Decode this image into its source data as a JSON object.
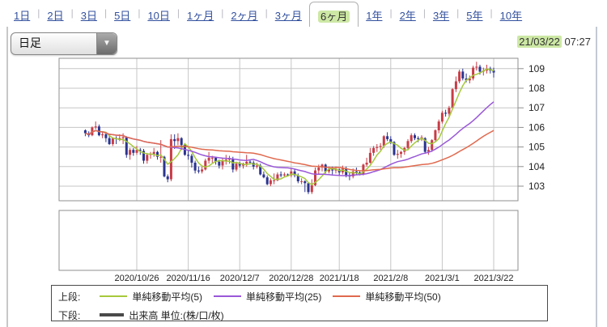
{
  "tabs": {
    "items": [
      {
        "label": "1日",
        "name": "tab-1d",
        "active": false
      },
      {
        "label": "2日",
        "name": "tab-2d",
        "active": false
      },
      {
        "label": "3日",
        "name": "tab-3d",
        "active": false
      },
      {
        "label": "5日",
        "name": "tab-5d",
        "active": false
      },
      {
        "label": "10日",
        "name": "tab-10d",
        "active": false
      },
      {
        "label": "1ヶ月",
        "name": "tab-1mo",
        "active": false
      },
      {
        "label": "2ヶ月",
        "name": "tab-2mo",
        "active": false
      },
      {
        "label": "3ヶ月",
        "name": "tab-3mo",
        "active": false
      },
      {
        "label": "6ヶ月",
        "name": "tab-6mo",
        "active": true
      },
      {
        "label": "1年",
        "name": "tab-1y",
        "active": false
      },
      {
        "label": "2年",
        "name": "tab-2y",
        "active": false
      },
      {
        "label": "3年",
        "name": "tab-3y",
        "active": false
      },
      {
        "label": "5年",
        "name": "tab-5y",
        "active": false
      },
      {
        "label": "10年",
        "name": "tab-10y",
        "active": false
      }
    ]
  },
  "toolbar": {
    "interval_select": {
      "value": "日足"
    },
    "datetime": {
      "date": "21/03/22",
      "time": "07:27"
    }
  },
  "legend": {
    "upper_label": "上段:",
    "lower_label": "下段:",
    "volume_label": "出来高 単位:(株/口/枚)"
  },
  "chart_data": {
    "type": "candlestick",
    "ylim": [
      102.3,
      109.5
    ],
    "y_ticks": [
      103,
      104,
      105,
      106,
      107,
      108,
      109
    ],
    "x_ticks": [
      {
        "label": "2020/10/26",
        "i": 15
      },
      {
        "label": "2020/11/16",
        "i": 30
      },
      {
        "label": "2020/12/7",
        "i": 45
      },
      {
        "label": "2020/12/28",
        "i": 60
      },
      {
        "label": "2021/1/18",
        "i": 74
      },
      {
        "label": "2021/2/8",
        "i": 89
      },
      {
        "label": "2021/3/1",
        "i": 104
      },
      {
        "label": "2021/3/22",
        "i": 119
      }
    ],
    "series": [
      {
        "name": "単純移動平均(5)",
        "period": 5,
        "color": "#a6c93c"
      },
      {
        "name": "単純移動平均(25)",
        "period": 25,
        "color": "#9957d8"
      },
      {
        "name": "単純移動平均(50)",
        "period": 50,
        "color": "#e0694e"
      }
    ],
    "colors": {
      "up": "#c83c46",
      "down": "#2a3490",
      "grid": "#c6c6c6",
      "border": "#8f8f8f"
    },
    "lower_panel": {
      "name": "出来高",
      "values": []
    },
    "candles": [
      [
        "2020/10/05",
        105.85,
        105.9,
        105.55,
        105.7
      ],
      [
        "2020/10/06",
        105.7,
        105.8,
        105.5,
        105.6
      ],
      [
        "2020/10/07",
        105.6,
        106.05,
        105.55,
        106.0
      ],
      [
        "2020/10/08",
        106.0,
        106.3,
        105.9,
        106.05
      ],
      [
        "2020/10/09",
        106.05,
        106.15,
        105.55,
        105.6
      ],
      [
        "2020/10/12",
        105.6,
        105.8,
        105.45,
        105.65
      ],
      [
        "2020/10/13",
        105.65,
        105.75,
        105.25,
        105.45
      ],
      [
        "2020/10/14",
        105.45,
        105.6,
        105.1,
        105.15
      ],
      [
        "2020/10/15",
        105.15,
        105.5,
        105.05,
        105.45
      ],
      [
        "2020/10/16",
        105.45,
        105.55,
        105.15,
        105.4
      ],
      [
        "2020/10/19",
        105.4,
        105.65,
        105.3,
        105.45
      ],
      [
        "2020/10/20",
        105.45,
        105.7,
        105.15,
        105.5
      ],
      [
        "2020/10/21",
        105.5,
        105.55,
        104.45,
        104.6
      ],
      [
        "2020/10/22",
        104.6,
        104.95,
        104.35,
        104.85
      ],
      [
        "2020/10/23",
        104.85,
        104.95,
        104.55,
        104.7
      ],
      [
        "2020/10/26",
        104.7,
        105.05,
        104.6,
        104.85
      ],
      [
        "2020/10/27",
        104.85,
        104.95,
        104.6,
        104.8
      ],
      [
        "2020/10/28",
        104.8,
        104.9,
        104.15,
        104.3
      ],
      [
        "2020/10/29",
        104.3,
        104.7,
        104.15,
        104.6
      ],
      [
        "2020/10/30",
        104.6,
        104.75,
        104.4,
        104.65
      ],
      [
        "2020/11/02",
        104.65,
        104.95,
        104.5,
        104.75
      ],
      [
        "2020/11/03",
        104.75,
        104.8,
        104.35,
        104.5
      ],
      [
        "2020/11/04",
        104.5,
        105.35,
        104.2,
        104.5
      ],
      [
        "2020/11/05",
        104.5,
        104.55,
        103.45,
        103.5
      ],
      [
        "2020/11/06",
        103.5,
        103.6,
        103.2,
        103.35
      ],
      [
        "2020/11/09",
        103.35,
        105.65,
        103.25,
        105.4
      ],
      [
        "2020/11/10",
        105.4,
        105.65,
        104.9,
        105.3
      ],
      [
        "2020/11/11",
        105.3,
        105.7,
        105.1,
        105.45
      ],
      [
        "2020/11/12",
        105.45,
        105.5,
        104.85,
        105.1
      ],
      [
        "2020/11/13",
        105.1,
        105.2,
        104.55,
        104.6
      ],
      [
        "2020/11/16",
        104.6,
        104.8,
        104.35,
        104.55
      ],
      [
        "2020/11/17",
        104.55,
        104.65,
        103.95,
        104.2
      ],
      [
        "2020/11/18",
        104.2,
        104.3,
        103.65,
        103.8
      ],
      [
        "2020/11/19",
        103.8,
        104.0,
        103.65,
        103.75
      ],
      [
        "2020/11/20",
        103.75,
        104.0,
        103.65,
        103.85
      ],
      [
        "2020/11/23",
        103.85,
        104.4,
        103.8,
        104.3
      ],
      [
        "2020/11/24",
        104.3,
        104.75,
        104.15,
        104.45
      ],
      [
        "2020/11/25",
        104.45,
        104.55,
        104.2,
        104.45
      ],
      [
        "2020/11/26",
        104.45,
        104.5,
        104.1,
        104.25
      ],
      [
        "2020/11/27",
        104.25,
        104.35,
        103.9,
        104.05
      ],
      [
        "2020/11/30",
        104.05,
        104.45,
        103.85,
        104.3
      ],
      [
        "2020/12/01",
        104.3,
        104.6,
        104.1,
        104.35
      ],
      [
        "2020/12/02",
        104.35,
        104.55,
        104.15,
        104.4
      ],
      [
        "2020/12/03",
        104.4,
        104.5,
        103.7,
        103.85
      ],
      [
        "2020/12/04",
        103.85,
        104.25,
        103.75,
        104.15
      ],
      [
        "2020/12/07",
        104.15,
        104.25,
        103.95,
        104.05
      ],
      [
        "2020/12/08",
        104.05,
        104.2,
        103.9,
        104.15
      ],
      [
        "2020/12/09",
        104.15,
        104.6,
        104.0,
        104.25
      ],
      [
        "2020/12/10",
        104.25,
        104.35,
        104.1,
        104.2
      ],
      [
        "2020/12/11",
        104.2,
        104.3,
        103.85,
        104.0
      ],
      [
        "2020/12/14",
        104.0,
        104.2,
        103.9,
        104.05
      ],
      [
        "2020/12/15",
        104.05,
        104.15,
        103.55,
        103.6
      ],
      [
        "2020/12/16",
        103.6,
        103.75,
        103.4,
        103.45
      ],
      [
        "2020/12/17",
        103.45,
        103.55,
        103.05,
        103.1
      ],
      [
        "2020/12/18",
        103.1,
        103.4,
        103.0,
        103.3
      ],
      [
        "2020/12/21",
        103.3,
        103.65,
        103.1,
        103.3
      ],
      [
        "2020/12/22",
        103.3,
        103.7,
        103.25,
        103.6
      ],
      [
        "2020/12/23",
        103.6,
        103.75,
        103.45,
        103.55
      ],
      [
        "2020/12/24",
        103.55,
        103.7,
        103.45,
        103.6
      ],
      [
        "2020/12/25",
        103.6,
        103.65,
        103.5,
        103.55
      ],
      [
        "2020/12/28",
        103.55,
        103.9,
        103.45,
        103.75
      ],
      [
        "2020/12/29",
        103.75,
        103.85,
        103.45,
        103.55
      ],
      [
        "2020/12/30",
        103.55,
        103.65,
        103.15,
        103.25
      ],
      [
        "2020/12/31",
        103.25,
        103.4,
        103.1,
        103.25
      ],
      [
        "2021/01/04",
        103.25,
        103.3,
        102.7,
        103.15
      ],
      [
        "2021/01/05",
        103.15,
        103.2,
        102.6,
        102.7
      ],
      [
        "2021/01/06",
        102.7,
        103.35,
        102.6,
        103.05
      ],
      [
        "2021/01/07",
        103.05,
        103.95,
        103.0,
        103.8
      ],
      [
        "2021/01/08",
        103.8,
        104.1,
        103.6,
        103.95
      ],
      [
        "2021/01/11",
        103.95,
        104.15,
        103.75,
        104.1
      ],
      [
        "2021/01/12",
        104.1,
        104.15,
        103.65,
        103.75
      ],
      [
        "2021/01/13",
        103.75,
        104.0,
        103.65,
        103.85
      ],
      [
        "2021/01/14",
        103.85,
        104.0,
        103.6,
        103.8
      ],
      [
        "2021/01/15",
        103.8,
        104.0,
        103.65,
        103.85
      ],
      [
        "2021/01/18",
        103.85,
        103.9,
        103.55,
        103.7
      ],
      [
        "2021/01/19",
        103.7,
        104.05,
        103.6,
        103.9
      ],
      [
        "2021/01/20",
        103.9,
        104.0,
        103.45,
        103.55
      ],
      [
        "2021/01/21",
        103.55,
        103.7,
        103.3,
        103.5
      ],
      [
        "2021/01/22",
        103.5,
        103.9,
        103.4,
        103.75
      ],
      [
        "2021/01/25",
        103.75,
        103.95,
        103.6,
        103.7
      ],
      [
        "2021/01/26",
        103.7,
        103.8,
        103.55,
        103.6
      ],
      [
        "2021/01/27",
        103.6,
        104.15,
        103.55,
        104.1
      ],
      [
        "2021/01/28",
        104.1,
        104.45,
        104.0,
        104.2
      ],
      [
        "2021/01/29",
        104.2,
        104.95,
        104.15,
        104.7
      ],
      [
        "2021/02/01",
        104.7,
        105.05,
        104.55,
        104.95
      ],
      [
        "2021/02/02",
        104.95,
        105.15,
        104.75,
        105.0
      ],
      [
        "2021/02/03",
        105.0,
        105.2,
        104.85,
        105.05
      ],
      [
        "2021/02/04",
        105.05,
        105.6,
        104.95,
        105.55
      ],
      [
        "2021/02/05",
        105.55,
        105.75,
        105.3,
        105.4
      ],
      [
        "2021/02/08",
        105.4,
        105.55,
        105.15,
        105.25
      ],
      [
        "2021/02/09",
        105.25,
        105.3,
        104.55,
        104.6
      ],
      [
        "2021/02/10",
        104.6,
        104.85,
        104.4,
        104.65
      ],
      [
        "2021/02/11",
        104.65,
        104.8,
        104.45,
        104.75
      ],
      [
        "2021/02/12",
        104.75,
        105.0,
        104.6,
        104.95
      ],
      [
        "2021/02/15",
        104.95,
        105.4,
        104.85,
        105.3
      ],
      [
        "2021/02/16",
        105.3,
        105.7,
        105.2,
        105.6
      ],
      [
        "2021/02/17",
        105.6,
        105.7,
        105.35,
        105.45
      ],
      [
        "2021/02/18",
        105.45,
        105.55,
        105.25,
        105.4
      ],
      [
        "2021/02/19",
        105.4,
        105.6,
        105.3,
        105.5
      ],
      [
        "2021/02/22",
        105.45,
        105.5,
        104.65,
        104.75
      ],
      [
        "2021/02/23",
        104.75,
        105.0,
        104.6,
        104.85
      ],
      [
        "2021/02/24",
        104.85,
        105.4,
        104.75,
        105.35
      ],
      [
        "2021/02/25",
        105.35,
        105.9,
        105.25,
        105.85
      ],
      [
        "2021/02/26",
        105.85,
        106.4,
        105.7,
        106.3
      ],
      [
        "2021/03/01",
        106.3,
        106.85,
        106.2,
        106.75
      ],
      [
        "2021/03/02",
        106.75,
        106.9,
        106.55,
        106.7
      ],
      [
        "2021/03/03",
        106.7,
        107.1,
        106.5,
        107.0
      ],
      [
        "2021/03/04",
        107.0,
        108.0,
        106.95,
        107.95
      ],
      [
        "2021/03/05",
        107.95,
        108.6,
        107.8,
        108.35
      ],
      [
        "2021/03/08",
        108.35,
        108.95,
        108.25,
        108.85
      ],
      [
        "2021/03/09",
        108.85,
        109.0,
        108.4,
        108.5
      ],
      [
        "2021/03/10",
        108.5,
        108.75,
        108.3,
        108.4
      ],
      [
        "2021/03/11",
        108.4,
        108.65,
        108.25,
        108.5
      ],
      [
        "2021/03/12",
        108.5,
        109.15,
        108.4,
        109.05
      ],
      [
        "2021/03/15",
        109.05,
        109.35,
        108.9,
        109.1
      ],
      [
        "2021/03/16",
        109.1,
        109.2,
        108.7,
        108.85
      ],
      [
        "2021/03/17",
        108.85,
        109.05,
        108.65,
        108.9
      ],
      [
        "2021/03/18",
        108.9,
        109.2,
        108.75,
        109.0
      ],
      [
        "2021/03/19",
        109.0,
        109.1,
        108.75,
        108.9
      ],
      [
        "2021/03/22",
        108.9,
        109.05,
        108.55,
        108.8
      ]
    ]
  }
}
